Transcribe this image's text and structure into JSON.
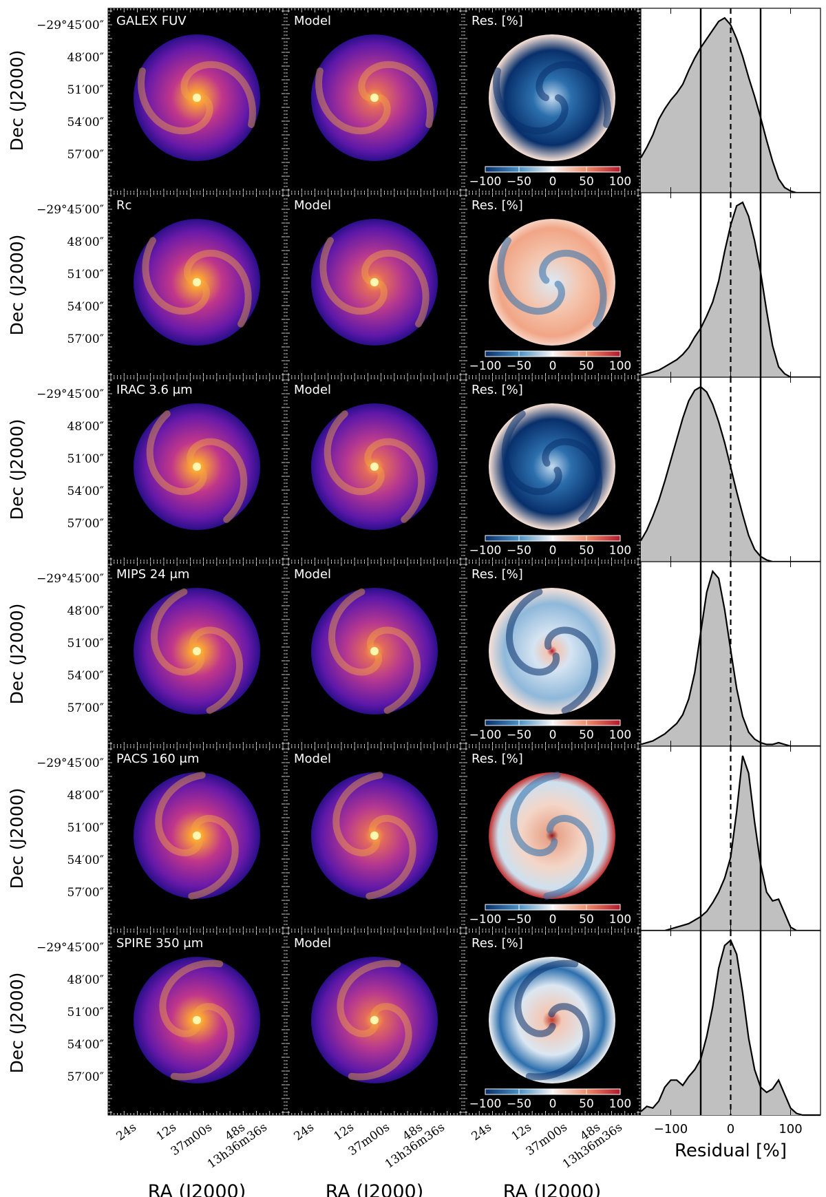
{
  "figure": {
    "ylabel": "Dec (J2000)",
    "xlabel": "RA (J2000)",
    "dec_ticks": [
      "−29°45′00″",
      "48′00″",
      "51′00″",
      "54′00″",
      "57′00″"
    ],
    "ra_ticks": [
      "24s",
      "12s",
      "37m00s",
      "48s",
      "13h36m36s"
    ],
    "model_label": "Model",
    "residual_label": "Res.  [%]",
    "colorbar_ticks": [
      "−100",
      "−50",
      "0",
      "50",
      "100"
    ],
    "colors": {
      "background": "#000000",
      "image_low": "#2a0f8a",
      "image_mid": "#c0368a",
      "image_high": "#fdd03a",
      "res_negative": "#08306b",
      "res_neutral": "#f7f7f7",
      "res_positive": "#b2182b",
      "hist_fill": "#c0c0c0",
      "hist_line": "#000000"
    }
  },
  "rows": [
    {
      "band": "GALEX FUV",
      "residual_tint": "blue",
      "core": "bright"
    },
    {
      "band": "Rc",
      "residual_tint": "red",
      "core": "bright"
    },
    {
      "band": "IRAC 3.6 μm",
      "residual_tint": "blue",
      "core": "bright"
    },
    {
      "band": "MIPS 24 μm",
      "residual_tint": "light-blue",
      "core": "bright"
    },
    {
      "band": "PACS 160 μm",
      "residual_tint": "light-red",
      "core": "bright"
    },
    {
      "band": "SPIRE 350 μm",
      "residual_tint": "mixed",
      "core": "bright"
    }
  ],
  "chart_data": {
    "type": "area",
    "xlabel": "Residual [%]",
    "xlim": [
      -150,
      150
    ],
    "xticks": [
      -100,
      0,
      100
    ],
    "vlines_solid": [
      -50,
      50
    ],
    "vline_dashed": 0,
    "x": [
      -150,
      -140,
      -130,
      -120,
      -110,
      -100,
      -90,
      -80,
      -70,
      -60,
      -50,
      -40,
      -30,
      -20,
      -10,
      0,
      10,
      20,
      30,
      40,
      50,
      60,
      70,
      80,
      90,
      100,
      110,
      120,
      130,
      140,
      150
    ],
    "series": [
      {
        "values": [
          0.2,
          0.26,
          0.33,
          0.42,
          0.48,
          0.53,
          0.57,
          0.62,
          0.7,
          0.77,
          0.83,
          0.88,
          0.93,
          0.98,
          1.0,
          0.96,
          0.88,
          0.78,
          0.66,
          0.55,
          0.43,
          0.3,
          0.18,
          0.08,
          0.03,
          0.01,
          0.0,
          0.0,
          0.0,
          0.0,
          0.0
        ]
      },
      {
        "values": [
          0.01,
          0.02,
          0.03,
          0.04,
          0.06,
          0.08,
          0.1,
          0.13,
          0.17,
          0.23,
          0.28,
          0.35,
          0.43,
          0.55,
          0.72,
          0.87,
          0.98,
          1.0,
          0.92,
          0.78,
          0.6,
          0.38,
          0.18,
          0.06,
          0.02,
          0.0,
          0.0,
          0.0,
          0.0,
          0.0,
          0.0
        ]
      },
      {
        "values": [
          0.12,
          0.18,
          0.26,
          0.35,
          0.46,
          0.58,
          0.7,
          0.82,
          0.92,
          0.98,
          1.0,
          0.97,
          0.9,
          0.8,
          0.68,
          0.54,
          0.4,
          0.27,
          0.15,
          0.07,
          0.03,
          0.01,
          0.0,
          0.0,
          0.0,
          0.0,
          0.0,
          0.0,
          0.0,
          0.0,
          0.0
        ]
      },
      {
        "values": [
          0.01,
          0.02,
          0.03,
          0.05,
          0.07,
          0.1,
          0.13,
          0.18,
          0.27,
          0.42,
          0.65,
          0.88,
          1.0,
          0.96,
          0.78,
          0.55,
          0.33,
          0.17,
          0.08,
          0.04,
          0.02,
          0.01,
          0.01,
          0.02,
          0.01,
          0.0,
          0.0,
          0.0,
          0.0,
          0.0,
          0.0
        ]
      },
      {
        "values": [
          0.0,
          0.0,
          0.0,
          0.0,
          0.0,
          0.01,
          0.02,
          0.03,
          0.04,
          0.06,
          0.08,
          0.11,
          0.16,
          0.22,
          0.3,
          0.42,
          0.68,
          1.0,
          0.9,
          0.62,
          0.38,
          0.22,
          0.17,
          0.18,
          0.1,
          0.02,
          0.0,
          0.0,
          0.0,
          0.0,
          0.0
        ]
      },
      {
        "values": [
          0.02,
          0.05,
          0.04,
          0.08,
          0.16,
          0.2,
          0.2,
          0.17,
          0.22,
          0.26,
          0.32,
          0.45,
          0.62,
          0.84,
          0.97,
          1.0,
          0.92,
          0.7,
          0.44,
          0.26,
          0.16,
          0.13,
          0.15,
          0.2,
          0.12,
          0.04,
          0.01,
          0.0,
          0.0,
          0.0,
          0.0
        ]
      }
    ]
  }
}
